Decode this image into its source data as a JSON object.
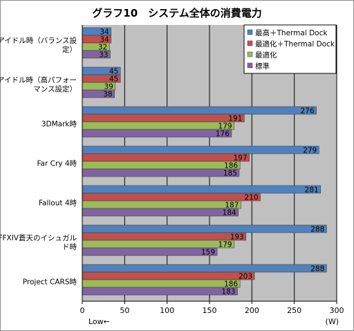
{
  "chart_data": {
    "type": "bar",
    "orientation": "horizontal",
    "title": "グラフ10　システム全体の消費電力",
    "categories": [
      [
        "アイドル時（バランス設",
        "定）"
      ],
      [
        "アイドル時（高パフォー",
        "マンス設定）"
      ],
      [
        "3DMark時"
      ],
      [
        "Far Cry 4時"
      ],
      [
        "Fallout 4時"
      ],
      [
        "FFXIV蒼天のイシュガル",
        "ド時"
      ],
      [
        "Project CARS時"
      ]
    ],
    "series": [
      {
        "name": "最高＋Thermal Dock",
        "color": "#4f81bd",
        "values": [
          34,
          45,
          276,
          279,
          281,
          288,
          288
        ]
      },
      {
        "name": "最適化＋Thermal Dock",
        "color": "#c0504d",
        "values": [
          34,
          45,
          191,
          197,
          210,
          193,
          203
        ]
      },
      {
        "name": "最適化",
        "color": "#9bbb59",
        "values": [
          32,
          39,
          179,
          186,
          187,
          179,
          186
        ]
      },
      {
        "name": "標準",
        "color": "#8064a2",
        "values": [
          33,
          38,
          176,
          185,
          184,
          159,
          183
        ]
      }
    ],
    "xlim": [
      0,
      300
    ],
    "xticks": [
      0,
      50,
      100,
      150,
      200,
      250,
      300
    ],
    "xlabel": "(W)",
    "x_note": "Low←",
    "grid": true,
    "legend": "top-right",
    "plot_background": "#c0c0c0"
  }
}
